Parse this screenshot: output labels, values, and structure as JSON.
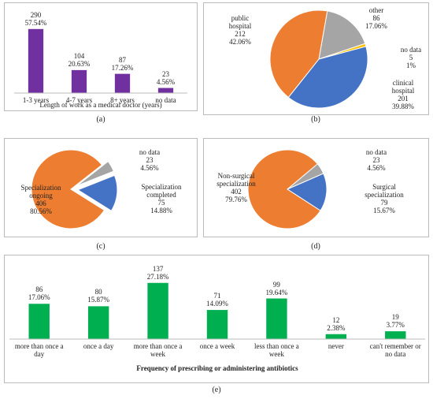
{
  "chart_data": [
    {
      "type": "bar",
      "panel_label": "(a)",
      "x_label": "Length of work as a medical doctor (years)",
      "categories": [
        "1-3 years",
        "4-7 years",
        "8+ years",
        "no data"
      ],
      "values": [
        290,
        104,
        87,
        23
      ],
      "percent_labels": [
        "57.54%",
        "20.63%",
        "17.26%",
        "4.56%"
      ],
      "color": "#7030a0",
      "ylim": [
        0,
        300
      ]
    },
    {
      "type": "pie",
      "panel_label": "(b)",
      "categories": [
        "other",
        "no data",
        "clinical hospital",
        "public hospital"
      ],
      "values": [
        86,
        5,
        201,
        212
      ],
      "percent_labels": [
        "17.06%",
        "1%",
        "39.88%",
        "42.06%"
      ],
      "colors": [
        "#a5a5a5",
        "#ffc000",
        "#4472c4",
        "#ed7d31"
      ]
    },
    {
      "type": "pie",
      "panel_label": "(c)",
      "categories": [
        "no data",
        "Specialization completed",
        "Specialization ongoing"
      ],
      "values": [
        23,
        75,
        406
      ],
      "percent_labels": [
        "4.56%",
        "14.88%",
        "80.56%"
      ],
      "colors": [
        "#a5a5a5",
        "#4472c4",
        "#ed7d31"
      ]
    },
    {
      "type": "pie",
      "panel_label": "(d)",
      "categories": [
        "no data",
        "Surgical specialization",
        "Non-surgical specialization"
      ],
      "values": [
        23,
        79,
        402
      ],
      "percent_labels": [
        "4.56%",
        "15.67%",
        "79.76%"
      ],
      "colors": [
        "#a5a5a5",
        "#4472c4",
        "#ed7d31"
      ]
    },
    {
      "type": "bar",
      "panel_label": "(e)",
      "x_label": "Frequency of prescribing or administering antibiotics",
      "categories": [
        "more than once a day",
        "once a day",
        "more than once a week",
        "once a week",
        "less than once a week",
        "never",
        "can't remember or no data"
      ],
      "values": [
        86,
        80,
        137,
        71,
        99,
        12,
        19
      ],
      "percent_labels": [
        "17.06%",
        "15.87%",
        "27.18%",
        "14.09%",
        "19.64%",
        "2.38%",
        "3.77%"
      ],
      "color": "#00b050",
      "ylim": [
        0,
        150
      ]
    }
  ]
}
